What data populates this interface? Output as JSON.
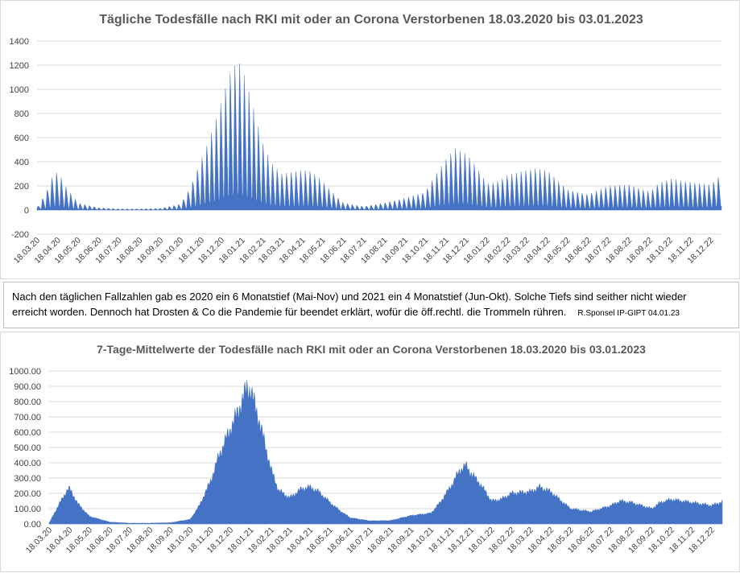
{
  "chart_data": [
    {
      "type": "area",
      "title": "Tägliche Todesfälle nach RKI mit oder an Corona  Verstorbenen 18.03.2020 bis 03.01.2023",
      "xlabel": "",
      "ylabel": "",
      "ylim": [
        -200,
        1400
      ],
      "yticks": [
        "1400",
        "1200",
        "1000",
        "800",
        "600",
        "400",
        "200",
        "0",
        "-200"
      ],
      "ytick_values": [
        1400,
        1200,
        1000,
        800,
        600,
        400,
        200,
        0,
        -200
      ],
      "xticks": [
        "18.03.20",
        "18.04.20",
        "18.05.20",
        "18.06.20",
        "18.07.20",
        "18.08.20",
        "18.09.20",
        "18.10.20",
        "18.11.20",
        "18.12.20",
        "18.01.21",
        "18.02.21",
        "18.03.21",
        "18.04.21",
        "18.05.21",
        "18.06.21",
        "18.07.21",
        "18.08.21",
        "18.09.21",
        "18.10.21",
        "18.11.21",
        "18.12.21",
        "18.01.22",
        "18.02.22",
        "18.03.22",
        "18.04.22",
        "18.05.22",
        "18.06.22",
        "18.07.22",
        "18.08.22",
        "18.09.22",
        "18.10.22",
        "18.11.22",
        "18.12.22"
      ],
      "weekly_peaks": [
        {
          "x": "18.03.20",
          "y": 20
        },
        {
          "x": "01.04.20",
          "y": 150
        },
        {
          "x": "08.04.20",
          "y": 260
        },
        {
          "x": "15.04.20",
          "y": 315
        },
        {
          "x": "22.04.20",
          "y": 280
        },
        {
          "x": "29.04.20",
          "y": 200
        },
        {
          "x": "06.05.20",
          "y": 150
        },
        {
          "x": "13.05.20",
          "y": 100
        },
        {
          "x": "18.05.20",
          "y": 60
        },
        {
          "x": "18.06.20",
          "y": 20
        },
        {
          "x": "18.07.20",
          "y": 10
        },
        {
          "x": "18.08.20",
          "y": 10
        },
        {
          "x": "18.09.20",
          "y": 15
        },
        {
          "x": "18.10.20",
          "y": 50
        },
        {
          "x": "01.11.20",
          "y": 180
        },
        {
          "x": "18.11.20",
          "y": 420
        },
        {
          "x": "01.12.20",
          "y": 600
        },
        {
          "x": "18.12.20",
          "y": 900
        },
        {
          "x": "01.01.21",
          "y": 1150
        },
        {
          "x": "12.01.21",
          "y": 1230
        },
        {
          "x": "18.01.21",
          "y": 1180
        },
        {
          "x": "01.02.21",
          "y": 900
        },
        {
          "x": "18.02.21",
          "y": 550
        },
        {
          "x": "01.03.21",
          "y": 400
        },
        {
          "x": "18.03.21",
          "y": 300
        },
        {
          "x": "18.04.21",
          "y": 330
        },
        {
          "x": "01.05.21",
          "y": 320
        },
        {
          "x": "18.05.21",
          "y": 240
        },
        {
          "x": "01.06.21",
          "y": 150
        },
        {
          "x": "18.06.21",
          "y": 60
        },
        {
          "x": "18.07.21",
          "y": 30
        },
        {
          "x": "18.08.21",
          "y": 60
        },
        {
          "x": "18.09.21",
          "y": 100
        },
        {
          "x": "18.10.21",
          "y": 150
        },
        {
          "x": "01.11.21",
          "y": 280
        },
        {
          "x": "18.11.21",
          "y": 420
        },
        {
          "x": "01.12.21",
          "y": 510
        },
        {
          "x": "18.12.21",
          "y": 470
        },
        {
          "x": "01.01.22",
          "y": 370
        },
        {
          "x": "18.01.22",
          "y": 220
        },
        {
          "x": "01.02.22",
          "y": 230
        },
        {
          "x": "18.02.22",
          "y": 290
        },
        {
          "x": "18.03.22",
          "y": 330
        },
        {
          "x": "01.04.22",
          "y": 345
        },
        {
          "x": "18.04.22",
          "y": 330
        },
        {
          "x": "01.05.22",
          "y": 260
        },
        {
          "x": "18.05.22",
          "y": 170
        },
        {
          "x": "18.06.22",
          "y": 130
        },
        {
          "x": "18.07.22",
          "y": 200
        },
        {
          "x": "18.08.22",
          "y": 210
        },
        {
          "x": "18.09.22",
          "y": 150
        },
        {
          "x": "01.10.22",
          "y": 220
        },
        {
          "x": "18.10.22",
          "y": 260
        },
        {
          "x": "18.11.22",
          "y": 230
        },
        {
          "x": "18.12.22",
          "y": 210
        },
        {
          "x": "03.01.23",
          "y": 300
        }
      ],
      "weekday_trough_fraction": 0.12,
      "series_color": "#4472c4",
      "grid": true,
      "legend": "none"
    },
    {
      "type": "area",
      "title": "7-Tage-Mittelwerte der Todesfälle nach RKI mit oder an Corona Verstorbenen 18.03.2020 bis 03.01.2023",
      "xlabel": "",
      "ylabel": "",
      "ylim": [
        0,
        1000
      ],
      "yticks": [
        "1000.00",
        "900.00",
        "800.00",
        "700.00",
        "600.00",
        "500.00",
        "400.00",
        "300.00",
        "200.00",
        "100.00",
        "0.00"
      ],
      "ytick_values": [
        1000,
        900,
        800,
        700,
        600,
        500,
        400,
        300,
        200,
        100,
        0
      ],
      "xticks": [
        "18.03.20",
        "18.04.20",
        "18.05.20",
        "18.06.20",
        "18.07.20",
        "18.08.20",
        "18.09.20",
        "18.10.20",
        "18.11.20",
        "18.12.20",
        "18.01.21",
        "18.02.21",
        "18.03.21",
        "18.04.21",
        "18.05.21",
        "18.06.21",
        "18.07.21",
        "18.08.21",
        "18.09.21",
        "18.10.21",
        "18.11.21",
        "18.12.21",
        "18.01.22",
        "18.02.22",
        "18.03.22",
        "18.04.22",
        "18.05.22",
        "18.06.22",
        "18.07.22",
        "18.08.22",
        "18.09.22",
        "18.10.22",
        "18.11.22",
        "18.12.22"
      ],
      "points": [
        {
          "x": "18.03.20",
          "y": 5
        },
        {
          "x": "01.04.20",
          "y": 120
        },
        {
          "x": "15.04.20",
          "y": 225
        },
        {
          "x": "18.04.20",
          "y": 230
        },
        {
          "x": "01.05.20",
          "y": 130
        },
        {
          "x": "18.05.20",
          "y": 50
        },
        {
          "x": "18.06.20",
          "y": 12
        },
        {
          "x": "18.07.20",
          "y": 5
        },
        {
          "x": "18.08.20",
          "y": 5
        },
        {
          "x": "18.09.20",
          "y": 8
        },
        {
          "x": "18.10.20",
          "y": 30
        },
        {
          "x": "01.11.20",
          "y": 120
        },
        {
          "x": "18.11.20",
          "y": 280
        },
        {
          "x": "01.12.20",
          "y": 450
        },
        {
          "x": "18.12.20",
          "y": 620
        },
        {
          "x": "01.01.21",
          "y": 760
        },
        {
          "x": "12.01.21",
          "y": 890
        },
        {
          "x": "18.01.21",
          "y": 870
        },
        {
          "x": "01.02.21",
          "y": 650
        },
        {
          "x": "18.02.21",
          "y": 350
        },
        {
          "x": "01.03.21",
          "y": 220
        },
        {
          "x": "18.03.21",
          "y": 170
        },
        {
          "x": "05.04.21",
          "y": 230
        },
        {
          "x": "18.04.21",
          "y": 240
        },
        {
          "x": "01.05.21",
          "y": 210
        },
        {
          "x": "18.05.21",
          "y": 140
        },
        {
          "x": "01.06.21",
          "y": 90
        },
        {
          "x": "18.06.21",
          "y": 40
        },
        {
          "x": "18.07.21",
          "y": 20
        },
        {
          "x": "18.08.21",
          "y": 22
        },
        {
          "x": "18.09.21",
          "y": 55
        },
        {
          "x": "18.10.21",
          "y": 70
        },
        {
          "x": "01.11.21",
          "y": 140
        },
        {
          "x": "18.11.21",
          "y": 250
        },
        {
          "x": "01.12.21",
          "y": 350
        },
        {
          "x": "10.12.21",
          "y": 380
        },
        {
          "x": "18.12.21",
          "y": 330
        },
        {
          "x": "01.01.22",
          "y": 260
        },
        {
          "x": "18.01.22",
          "y": 150
        },
        {
          "x": "01.02.22",
          "y": 160
        },
        {
          "x": "18.02.22",
          "y": 200
        },
        {
          "x": "18.03.22",
          "y": 210
        },
        {
          "x": "01.04.22",
          "y": 240
        },
        {
          "x": "18.04.22",
          "y": 210
        },
        {
          "x": "01.05.22",
          "y": 160
        },
        {
          "x": "18.05.22",
          "y": 100
        },
        {
          "x": "18.06.22",
          "y": 80
        },
        {
          "x": "18.07.22",
          "y": 120
        },
        {
          "x": "01.08.22",
          "y": 150
        },
        {
          "x": "18.08.22",
          "y": 140
        },
        {
          "x": "18.09.22",
          "y": 100
        },
        {
          "x": "01.10.22",
          "y": 140
        },
        {
          "x": "18.10.22",
          "y": 160
        },
        {
          "x": "18.11.22",
          "y": 140
        },
        {
          "x": "18.12.22",
          "y": 120
        },
        {
          "x": "03.01.23",
          "y": 145
        }
      ],
      "series_color": "#4472c4",
      "grid": true,
      "legend": "none"
    }
  ],
  "note": {
    "line1": "Nach den täglichen Fallzahlen gab es 2020 ein 6 Monatstief (Mai-Nov) und 2021 ein 4 Monatstief (Jun-Okt). Solche Tiefs sind seither nicht wieder",
    "line2": "erreicht  worden. Dennoch hat Drosten & Co die Pandemie für beendet erklärt, wofür die öff.rechtl. die Trommeln rühren.",
    "signature": "R.Sponsel IP-GIPT 04.01.23"
  }
}
